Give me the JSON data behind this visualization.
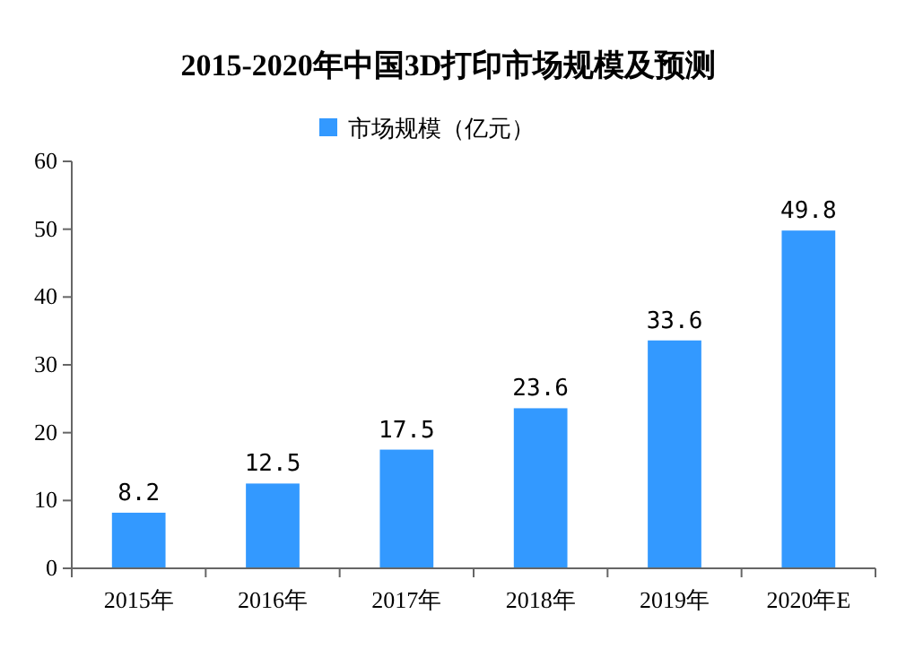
{
  "chart_data": {
    "type": "bar",
    "title": "2015-2020年中国3D打印市场规模及预测",
    "categories": [
      "2015年",
      "2016年",
      "2017年",
      "2018年",
      "2019年",
      "2020年E"
    ],
    "series": [
      {
        "name": "市场规模（亿元）",
        "color": "#3399ff",
        "values": [
          8.2,
          12.5,
          17.5,
          23.6,
          33.6,
          49.8
        ]
      }
    ],
    "ylim": [
      0,
      60
    ],
    "yticks": [
      0,
      10,
      20,
      30,
      40,
      50,
      60
    ],
    "data_labels": true,
    "legend": "top",
    "grid": false
  }
}
